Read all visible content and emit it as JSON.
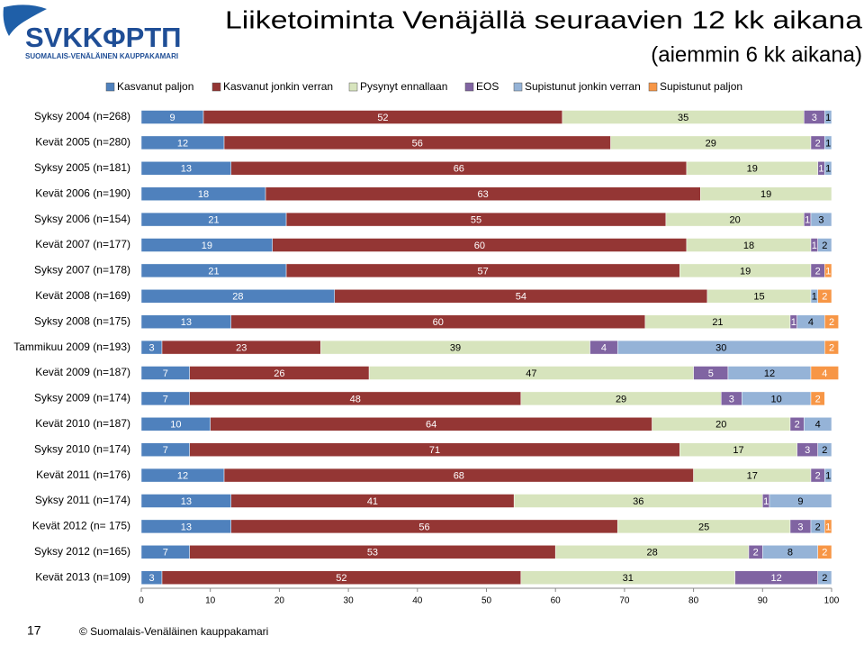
{
  "logo": {
    "name": "SVKKΦPTΠ",
    "tagline": "SUOMALAIS-VENÄLÄINEN KAUPPAKAMARI"
  },
  "page_number": "17",
  "copyright": "© Suomalais-Venäläinen kauppakamari",
  "chart_data": {
    "type": "stacked-barh",
    "title": "Liiketoiminta Venäjällä seuraavien 12 kk aikana",
    "subtitle": "(aiemmin 6 kk aikana)",
    "categories": [
      "Syksy 2004 (n=268)",
      "Kevät 2005 (n=280)",
      "Syksy 2005 (n=181)",
      "Kevät 2006 (n=190)",
      "Syksy 2006 (n=154)",
      "Kevät 2007 (n=177)",
      "Syksy 2007 (n=178)",
      "Kevät 2008 (n=169)",
      "Syksy 2008 (n=175)",
      "Tammikuu 2009 (n=193)",
      "Kevät 2009 (n=187)",
      "Syksy 2009 (n=174)",
      "Kevät 2010 (n=187)",
      "Syksy 2010 (n=174)",
      "Kevät 2011 (n=176)",
      "Syksy 2011 (n=174)",
      "Kevät 2012 (n= 175)",
      "Syksy 2012 (n=165)",
      "Kevät 2013 (n=109)"
    ],
    "series": [
      {
        "name": "Kasvanut paljon",
        "color": "#4f81bd",
        "label_color": "#ffffff",
        "values": [
          9,
          12,
          13,
          18,
          21,
          19,
          21,
          28,
          13,
          3,
          7,
          7,
          10,
          7,
          12,
          13,
          13,
          7,
          3
        ]
      },
      {
        "name": "Kasvanut jonkin verran",
        "color": "#943634",
        "label_color": "#ffffff",
        "values": [
          52,
          56,
          66,
          63,
          55,
          60,
          57,
          54,
          60,
          23,
          26,
          48,
          64,
          71,
          68,
          41,
          56,
          53,
          52
        ]
      },
      {
        "name": "Pysynyt ennallaan",
        "color": "#d7e4bd",
        "label_color": "#000000",
        "values": [
          35,
          29,
          19,
          19,
          20,
          18,
          19,
          15,
          21,
          39,
          47,
          29,
          20,
          17,
          17,
          36,
          25,
          28,
          31
        ]
      },
      {
        "name": "EOS",
        "color": "#8064a2",
        "label_color": "#ffffff",
        "values": [
          3,
          2,
          1,
          null,
          1,
          1,
          2,
          null,
          1,
          4,
          5,
          3,
          2,
          3,
          2,
          1,
          3,
          2,
          12
        ]
      },
      {
        "name": "Supistunut jonkin verran",
        "color": "#95b3d7",
        "label_color": "#000000",
        "values": [
          1,
          1,
          1,
          null,
          3,
          2,
          null,
          1,
          4,
          30,
          12,
          10,
          4,
          2,
          1,
          9,
          2,
          8,
          2
        ]
      },
      {
        "name": "Supistunut paljon",
        "color": "#f79646",
        "label_color": "#ffffff",
        "values": [
          null,
          null,
          null,
          null,
          null,
          null,
          1,
          2,
          2,
          2,
          4,
          2,
          null,
          null,
          null,
          null,
          1,
          2,
          null
        ]
      }
    ],
    "xlim": [
      0,
      100
    ],
    "xticks": [
      0,
      10,
      20,
      30,
      40,
      50,
      60,
      70,
      80,
      90,
      100
    ]
  }
}
